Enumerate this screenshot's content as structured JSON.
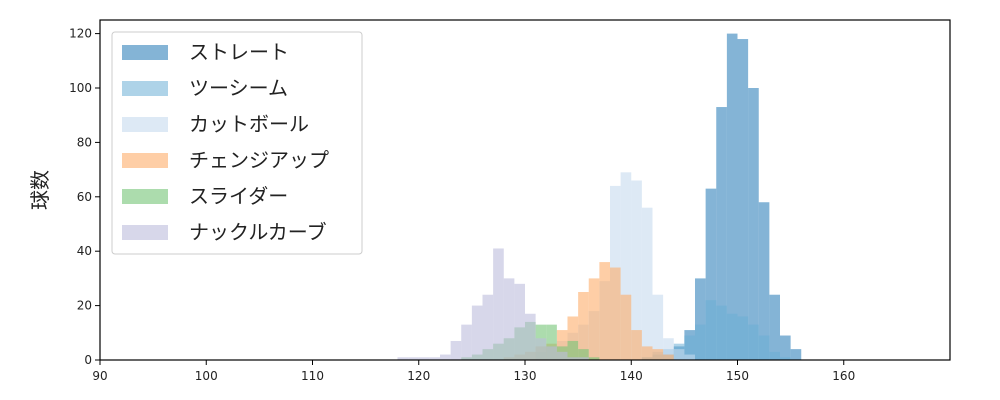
{
  "chart_data": {
    "type": "histogram",
    "title": "",
    "xlabel": "",
    "ylabel": "球数",
    "xlim": [
      90,
      170
    ],
    "ylim": [
      0,
      125
    ],
    "bin_width": 1,
    "xticks": [
      90,
      100,
      110,
      120,
      130,
      140,
      150,
      160
    ],
    "yticks": [
      0,
      20,
      40,
      60,
      80,
      100,
      120
    ],
    "grid": false,
    "legend_position": "top-left",
    "series": [
      {
        "name": "ストレート",
        "color": "#1f77b4",
        "opacity": 0.55,
        "bins": [
          [
            141,
            1
          ],
          [
            142,
            2
          ],
          [
            143,
            2
          ],
          [
            144,
            5
          ],
          [
            145,
            11
          ],
          [
            146,
            30
          ],
          [
            147,
            63
          ],
          [
            148,
            93
          ],
          [
            149,
            120
          ],
          [
            150,
            118
          ],
          [
            151,
            100
          ],
          [
            152,
            58
          ],
          [
            153,
            24
          ],
          [
            154,
            9
          ],
          [
            155,
            4
          ]
        ]
      },
      {
        "name": "ツーシーム",
        "color": "#6baed6",
        "opacity": 0.55,
        "bins": [
          [
            141,
            1
          ],
          [
            142,
            3
          ],
          [
            143,
            4
          ],
          [
            144,
            6
          ],
          [
            145,
            9
          ],
          [
            146,
            13
          ],
          [
            147,
            22
          ],
          [
            148,
            20
          ],
          [
            149,
            17
          ],
          [
            150,
            16
          ],
          [
            151,
            13
          ],
          [
            152,
            9
          ],
          [
            153,
            3
          ],
          [
            154,
            1
          ]
        ]
      },
      {
        "name": "カットボール",
        "color": "#c6dbef",
        "opacity": 0.6,
        "bins": [
          [
            131,
            3
          ],
          [
            132,
            5
          ],
          [
            133,
            7
          ],
          [
            134,
            10
          ],
          [
            135,
            13
          ],
          [
            136,
            18
          ],
          [
            137,
            29
          ],
          [
            138,
            64
          ],
          [
            139,
            69
          ],
          [
            140,
            66
          ],
          [
            141,
            56
          ],
          [
            142,
            24
          ],
          [
            143,
            8
          ],
          [
            144,
            4
          ],
          [
            145,
            2
          ]
        ]
      },
      {
        "name": "チェンジアップ",
        "color": "#fdae6b",
        "opacity": 0.6,
        "bins": [
          [
            128,
            1
          ],
          [
            129,
            2
          ],
          [
            130,
            3
          ],
          [
            131,
            5
          ],
          [
            132,
            6
          ],
          [
            133,
            11
          ],
          [
            134,
            16
          ],
          [
            135,
            25
          ],
          [
            136,
            30
          ],
          [
            137,
            36
          ],
          [
            138,
            34
          ],
          [
            139,
            24
          ],
          [
            140,
            11
          ],
          [
            141,
            5
          ],
          [
            142,
            4
          ],
          [
            143,
            2
          ]
        ]
      },
      {
        "name": "スライダー",
        "color": "#74c476",
        "opacity": 0.6,
        "bins": [
          [
            124,
            1
          ],
          [
            125,
            2
          ],
          [
            126,
            4
          ],
          [
            127,
            6
          ],
          [
            128,
            8
          ],
          [
            129,
            12
          ],
          [
            130,
            14
          ],
          [
            131,
            13
          ],
          [
            132,
            13
          ],
          [
            133,
            5
          ],
          [
            134,
            7
          ],
          [
            135,
            4
          ],
          [
            136,
            1
          ]
        ]
      },
      {
        "name": "ナックルカーブ",
        "color": "#bcbddc",
        "opacity": 0.6,
        "bins": [
          [
            118,
            1
          ],
          [
            119,
            1
          ],
          [
            120,
            1
          ],
          [
            121,
            1
          ],
          [
            122,
            2
          ],
          [
            123,
            7
          ],
          [
            124,
            13
          ],
          [
            125,
            20
          ],
          [
            126,
            24
          ],
          [
            127,
            41
          ],
          [
            128,
            30
          ],
          [
            129,
            28
          ],
          [
            130,
            17
          ],
          [
            131,
            8
          ],
          [
            132,
            5
          ],
          [
            133,
            3
          ],
          [
            134,
            1
          ],
          [
            135,
            1
          ]
        ]
      }
    ]
  }
}
